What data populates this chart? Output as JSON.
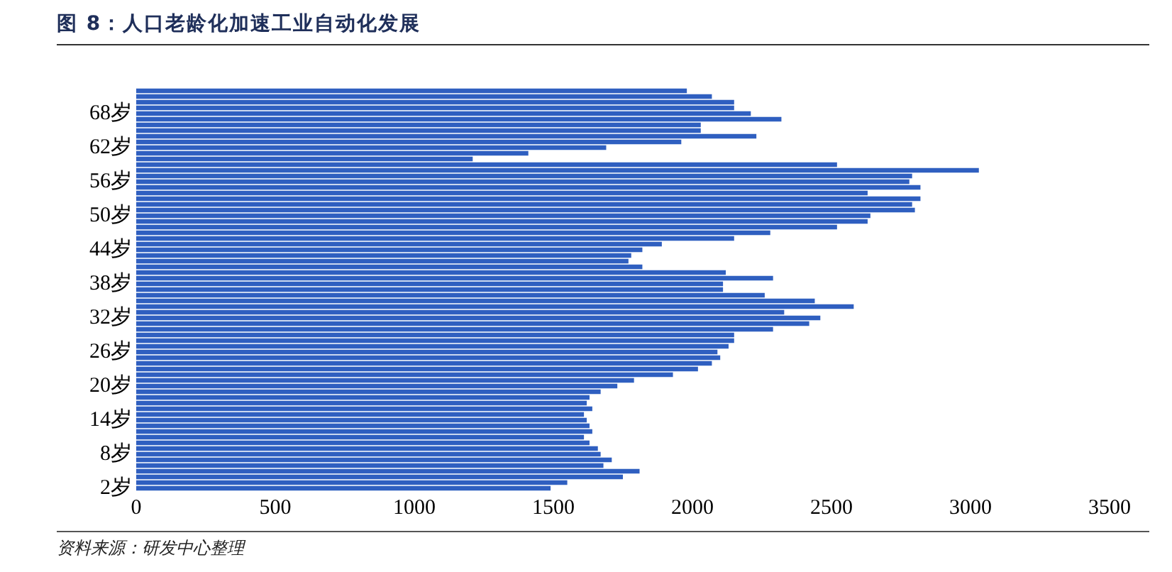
{
  "chart_data": {
    "type": "bar",
    "orientation": "horizontal",
    "title": "图 8：人口老龄化加速工业自动化发展",
    "categories": [
      null,
      null,
      null,
      null,
      "68岁",
      null,
      null,
      null,
      null,
      null,
      "62岁",
      null,
      null,
      null,
      null,
      null,
      "56岁",
      null,
      null,
      null,
      null,
      null,
      "50岁",
      null,
      null,
      null,
      null,
      null,
      "44岁",
      null,
      null,
      null,
      null,
      null,
      "38岁",
      null,
      null,
      null,
      null,
      null,
      "32岁",
      null,
      null,
      null,
      null,
      null,
      "26岁",
      null,
      null,
      null,
      null,
      null,
      "20岁",
      null,
      null,
      null,
      null,
      null,
      "14岁",
      null,
      null,
      null,
      null,
      null,
      "8岁",
      null,
      null,
      null,
      null,
      null,
      "2岁"
    ],
    "values": [
      1980,
      2070,
      2150,
      2150,
      2210,
      2320,
      2030,
      2030,
      2230,
      1960,
      1690,
      1410,
      1210,
      2520,
      3030,
      2790,
      2780,
      2820,
      2630,
      2820,
      2790,
      2800,
      2640,
      2630,
      2520,
      2280,
      2150,
      1890,
      1820,
      1780,
      1770,
      1820,
      2120,
      2290,
      2110,
      2110,
      2260,
      2440,
      2580,
      2330,
      2460,
      2420,
      2290,
      2150,
      2150,
      2130,
      2090,
      2100,
      2070,
      2020,
      1930,
      1790,
      1730,
      1670,
      1630,
      1620,
      1640,
      1610,
      1620,
      1630,
      1640,
      1610,
      1630,
      1660,
      1670,
      1710,
      1680,
      1810,
      1750,
      1550,
      1490
    ],
    "color": "#2f5fc0",
    "xlim": [
      0,
      3500
    ],
    "xticks": [
      0,
      500,
      1000,
      1500,
      2000,
      2500,
      3000,
      3500
    ],
    "grid": false,
    "legend": false,
    "annotations": [
      "资料来源：研发中心整理"
    ]
  }
}
